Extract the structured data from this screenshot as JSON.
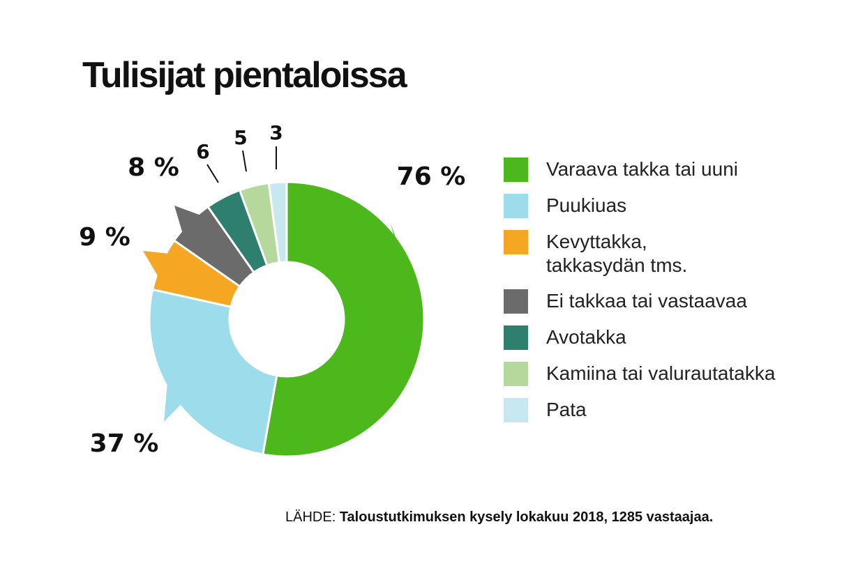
{
  "title": "Tulisijat pientaloissa",
  "chart_data": {
    "type": "donut",
    "title": "Tulisijat pientaloissa",
    "unit": "%",
    "categories": [
      "Varaava takka tai uuni",
      "Puukiuas",
      "Kevyttakka, takkasydän tms.",
      "Ei takkaa tai vastaavaa",
      "Avotakka",
      "Kamiina tai valurautatakka",
      "Pata"
    ],
    "values": [
      76,
      37,
      9,
      8,
      6,
      5,
      3
    ],
    "value_labels": [
      "76 %",
      "37 %",
      "9 %",
      "8 %",
      "6",
      "5",
      "3"
    ],
    "colors": [
      "#4cb81c",
      "#9ddceb",
      "#f5a623",
      "#6b6b6b",
      "#2e7f6e",
      "#b5d99c",
      "#c8e8f0"
    ],
    "legend_position": "right"
  },
  "legend": [
    {
      "label": "Varaava takka tai uuni",
      "color": "#4cb81c"
    },
    {
      "label": "Puukiuas",
      "color": "#9ddceb"
    },
    {
      "label": "Kevyttakka,\ntakkasydän tms.",
      "color": "#f5a623"
    },
    {
      "label": "Ei takkaa tai vastaavaa",
      "color": "#6b6b6b"
    },
    {
      "label": "Avotakka",
      "color": "#2e7f6e"
    },
    {
      "label": "Kamiina tai valurautatakka",
      "color": "#b5d99c"
    },
    {
      "label": "Pata",
      "color": "#c8e8f0"
    }
  ],
  "source": {
    "prefix": "LÄHDE: ",
    "text": "Taloustutkimuksen kysely lokakuu 2018, 1285 vastaajaa."
  }
}
